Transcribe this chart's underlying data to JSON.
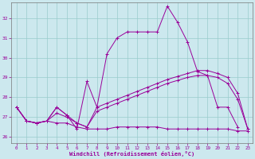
{
  "xlabel": "Windchill (Refroidissement éolien,°C)",
  "background_color": "#cce8ee",
  "line_color": "#990099",
  "grid_color": "#99cccc",
  "x_min": -0.5,
  "x_max": 23.5,
  "y_min": 25.7,
  "y_max": 32.8,
  "yticks": [
    26,
    27,
    28,
    29,
    30,
    31,
    32
  ],
  "xticks": [
    0,
    1,
    2,
    3,
    4,
    5,
    6,
    7,
    8,
    9,
    10,
    11,
    12,
    13,
    14,
    15,
    16,
    17,
    18,
    19,
    20,
    21,
    22,
    23
  ],
  "series": {
    "line1": {
      "x": [
        0,
        1,
        2,
        3,
        4,
        5,
        6,
        7,
        8,
        9,
        10,
        11,
        12,
        13,
        14,
        15,
        16,
        17,
        18,
        19,
        20,
        21,
        22,
        23
      ],
      "y": [
        27.5,
        26.8,
        26.7,
        26.8,
        27.5,
        27.1,
        26.4,
        28.8,
        27.5,
        30.2,
        31.0,
        31.3,
        31.3,
        31.3,
        31.3,
        32.6,
        31.8,
        30.8,
        29.3,
        29.1,
        27.5,
        27.5,
        26.5,
        null
      ]
    },
    "line2": {
      "x": [
        0,
        1,
        2,
        3,
        4,
        5,
        6,
        7,
        8,
        9,
        10,
        11,
        12,
        13,
        14,
        15,
        16,
        17,
        18,
        19,
        20,
        21,
        22,
        23
      ],
      "y": [
        27.5,
        26.8,
        26.7,
        26.8,
        27.5,
        27.1,
        26.7,
        26.5,
        27.5,
        27.7,
        27.9,
        28.1,
        28.3,
        28.5,
        28.7,
        28.9,
        29.05,
        29.2,
        29.35,
        29.35,
        29.2,
        29.0,
        28.2,
        26.4
      ]
    },
    "line3": {
      "x": [
        0,
        1,
        2,
        3,
        4,
        5,
        6,
        7,
        8,
        9,
        10,
        11,
        12,
        13,
        14,
        15,
        16,
        17,
        18,
        19,
        20,
        21,
        22,
        23
      ],
      "y": [
        27.5,
        26.8,
        26.7,
        26.8,
        27.2,
        27.0,
        26.7,
        26.5,
        27.3,
        27.5,
        27.7,
        27.9,
        28.1,
        28.3,
        28.5,
        28.7,
        28.85,
        29.0,
        29.1,
        29.1,
        29.0,
        28.7,
        27.9,
        26.4
      ]
    },
    "line4": {
      "x": [
        0,
        1,
        2,
        3,
        4,
        5,
        6,
        7,
        8,
        9,
        10,
        11,
        12,
        13,
        14,
        15,
        16,
        17,
        18,
        19,
        20,
        21,
        22,
        23
      ],
      "y": [
        27.5,
        26.8,
        26.7,
        26.8,
        26.7,
        26.7,
        26.5,
        26.4,
        26.4,
        26.4,
        26.5,
        26.5,
        26.5,
        26.5,
        26.5,
        26.4,
        26.4,
        26.4,
        26.4,
        26.4,
        26.4,
        26.4,
        26.3,
        26.3
      ]
    }
  }
}
